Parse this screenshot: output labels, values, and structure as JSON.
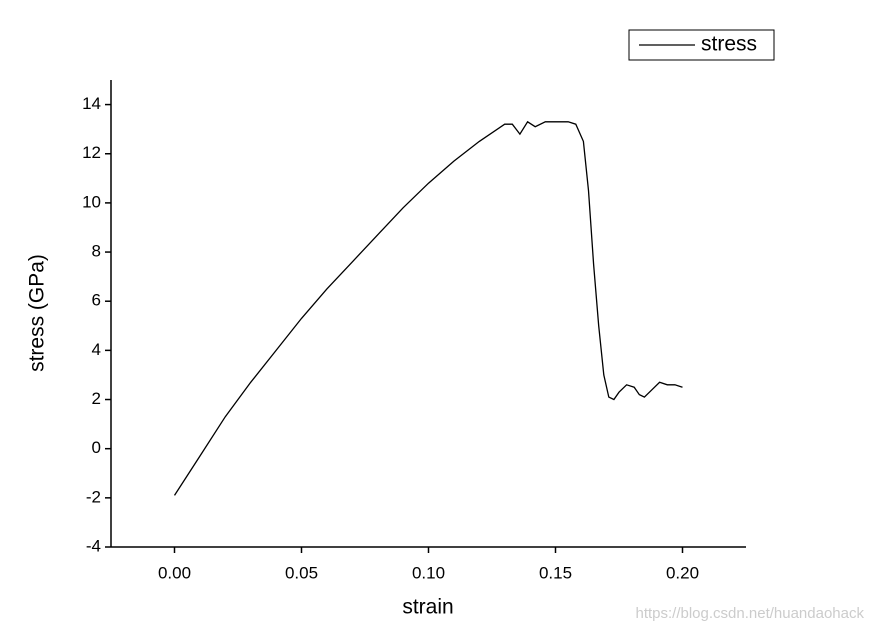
{
  "chart_data": {
    "type": "line",
    "x_label": "strain",
    "y_label": "stress (GPa)",
    "watermark": "https://blog.csdn.net/huandaohack",
    "xlim": [
      -0.025,
      0.225
    ],
    "xticks": [
      {
        "value": 0,
        "label": "0.00"
      },
      {
        "value": 0.05,
        "label": "0.05"
      },
      {
        "value": 0.1,
        "label": "0.10"
      },
      {
        "value": 0.15,
        "label": "0.15"
      },
      {
        "value": 0.2,
        "label": "0.20"
      }
    ],
    "ylim": [
      -4,
      15
    ],
    "yticks": [
      -4,
      -2,
      0,
      2,
      4,
      6,
      8,
      10,
      12,
      14
    ],
    "legend": "top-right",
    "x": [
      0,
      0.01,
      0.02,
      0.03,
      0.04,
      0.05,
      0.06,
      0.07,
      0.08,
      0.09,
      0.1,
      0.11,
      0.12,
      0.13,
      0.133,
      0.136,
      0.139,
      0.142,
      0.146,
      0.155,
      0.158,
      0.161,
      0.163,
      0.165,
      0.167,
      0.169,
      0.171,
      0.173,
      0.175,
      0.178,
      0.181,
      0.183,
      0.185,
      0.188,
      0.191,
      0.194,
      0.197,
      0.2
    ],
    "series": [
      {
        "name": "stress",
        "color": "#000000",
        "values": [
          -1.9,
          -0.3,
          1.3,
          2.7,
          4.0,
          5.3,
          6.5,
          7.6,
          8.7,
          9.8,
          10.8,
          11.7,
          12.5,
          13.2,
          13.2,
          12.8,
          13.3,
          13.1,
          13.3,
          13.3,
          13.2,
          12.5,
          10.5,
          7.5,
          5.0,
          3.0,
          2.1,
          2.0,
          2.3,
          2.6,
          2.5,
          2.2,
          2.1,
          2.4,
          2.7,
          2.6,
          2.6,
          2.5
        ]
      }
    ]
  }
}
